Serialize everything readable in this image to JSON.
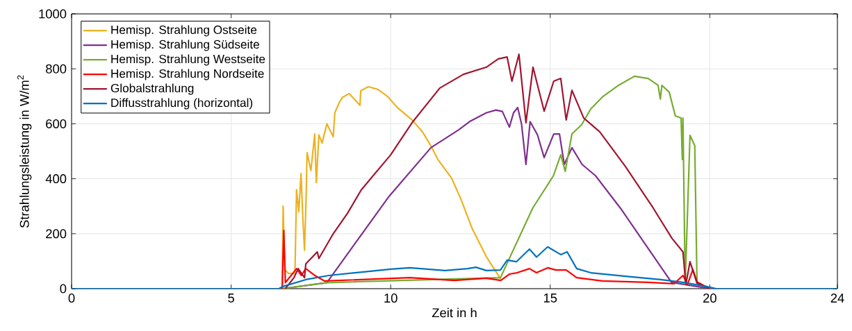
{
  "chart_data": {
    "type": "line",
    "xlabel": "Zeit in h",
    "ylabel": "Strahlungsleistung in W/m$^{2}$",
    "xlim": [
      0,
      24
    ],
    "ylim": [
      0,
      1000
    ],
    "xticks": [
      0,
      5,
      10,
      15,
      20,
      24
    ],
    "yticks": [
      0,
      200,
      400,
      600,
      800,
      1000
    ],
    "grid": true,
    "legend": "top left",
    "marker": "none",
    "line_style": "solid",
    "series": [
      {
        "name": "Hemisp. Strahlung Ostseite",
        "color": "#edb120",
        "x": [
          6.6,
          6.63,
          6.68,
          6.8,
          7.0,
          7.05,
          7.12,
          7.19,
          7.25,
          7.3,
          7.35,
          7.38,
          7.5,
          7.62,
          7.67,
          7.75,
          7.85,
          8.0,
          8.2,
          8.25,
          8.4,
          8.5,
          8.7,
          9.04,
          9.06,
          9.3,
          9.6,
          9.9,
          10.2,
          10.67,
          11.0,
          11.26,
          11.48,
          11.91,
          12.2,
          12.56,
          13.0,
          13.45
        ],
        "values": [
          0,
          300,
          70,
          55,
          55,
          360,
          280,
          419,
          250,
          140,
          330,
          495,
          430,
          563,
          386,
          560,
          530,
          600,
          553,
          640,
          680,
          697,
          710,
          667,
          720,
          735,
          725,
          700,
          660,
          614,
          570,
          520,
          470,
          402,
          326,
          217,
          116,
          35
        ]
      },
      {
        "name": "Hemisp. Strahlung Südseite",
        "color": "#7e2f8e",
        "x": [
          6.6,
          8.0,
          9.95,
          11.26,
          12.13,
          12.5,
          13.0,
          13.3,
          13.5,
          13.72,
          13.85,
          13.98,
          14.1,
          14.24,
          14.37,
          14.6,
          14.81,
          15.11,
          15.29,
          15.44,
          15.68,
          16.0,
          16.42,
          17.2,
          18.8,
          19.5,
          20.0
        ],
        "values": [
          0,
          22,
          336,
          513,
          578,
          610,
          640,
          650,
          645,
          588,
          640,
          659,
          600,
          452,
          608,
          560,
          477,
          563,
          563,
          452,
          513,
          452,
          411,
          293,
          23,
          10,
          0
        ]
      },
      {
        "name": "Hemisp. Strahlung Westseite",
        "color": "#77ac30",
        "x": [
          6.6,
          8.0,
          13.44,
          14.45,
          15.1,
          15.33,
          15.47,
          15.68,
          15.98,
          16.27,
          16.63,
          17.14,
          17.64,
          18.07,
          18.38,
          18.45,
          18.5,
          18.73,
          18.92,
          19.1,
          19.14,
          19.16,
          19.23,
          19.38,
          19.53,
          19.6,
          19.8,
          20.0
        ],
        "values": [
          0,
          22,
          40,
          293,
          411,
          487,
          427,
          563,
          596,
          654,
          697,
          740,
          773,
          765,
          740,
          690,
          740,
          715,
          629,
          621,
          470,
          621,
          15,
          558,
          520,
          20,
          10,
          0
        ]
      },
      {
        "name": "Hemisp. Strahlung Nordseite",
        "color": "#ff0000",
        "x": [
          6.6,
          6.65,
          6.7,
          7.05,
          7.2,
          7.34,
          7.62,
          7.93,
          10.6,
          12.0,
          13.0,
          13.45,
          13.72,
          13.93,
          14.35,
          14.57,
          14.92,
          15.18,
          15.5,
          15.83,
          16.63,
          18.07,
          18.88,
          19.16,
          19.3,
          19.47,
          19.6,
          20.0
        ],
        "values": [
          0,
          212,
          22,
          73,
          48,
          73,
          48,
          28,
          40,
          30,
          38,
          30,
          53,
          57,
          73,
          58,
          76,
          68,
          68,
          40,
          28,
          23,
          18,
          48,
          15,
          70,
          25,
          0
        ]
      },
      {
        "name": "Globalstrahlung",
        "color": "#a2142f",
        "x": [
          6.7,
          6.97,
          7.1,
          7.3,
          7.34,
          7.7,
          7.75,
          8.2,
          8.65,
          9.08,
          10.0,
          10.67,
          11.54,
          12.28,
          13.0,
          13.37,
          13.65,
          13.8,
          14.02,
          14.24,
          14.46,
          14.81,
          15.11,
          15.33,
          15.5,
          15.68,
          16.05,
          16.55,
          17.36,
          18.23,
          18.81,
          19.16,
          19.25,
          19.38,
          19.6,
          20.0
        ],
        "values": [
          0,
          40,
          73,
          40,
          90,
          134,
          110,
          200,
          275,
          360,
          487,
          604,
          730,
          780,
          806,
          836,
          843,
          755,
          853,
          604,
          806,
          646,
          755,
          765,
          614,
          722,
          621,
          571,
          444,
          293,
          184,
          134,
          15,
          98,
          20,
          0
        ]
      },
      {
        "name": "Diffusstrahlung (horizontal)",
        "color": "#0072bd",
        "x": [
          0,
          6.5,
          6.62,
          7.34,
          8.06,
          9.15,
          10.0,
          10.6,
          11.7,
          12.41,
          12.67,
          13.0,
          13.44,
          13.65,
          13.94,
          14.35,
          14.57,
          14.92,
          15.33,
          15.53,
          15.83,
          16.27,
          17.36,
          18.45,
          19.16,
          19.9,
          20.2,
          24
        ],
        "values": [
          0,
          0,
          8,
          33,
          48,
          61,
          71,
          76,
          66,
          73,
          78,
          66,
          68,
          104,
          98,
          144,
          115,
          152,
          124,
          134,
          73,
          58,
          45,
          33,
          23,
          8,
          0,
          0
        ]
      }
    ]
  }
}
